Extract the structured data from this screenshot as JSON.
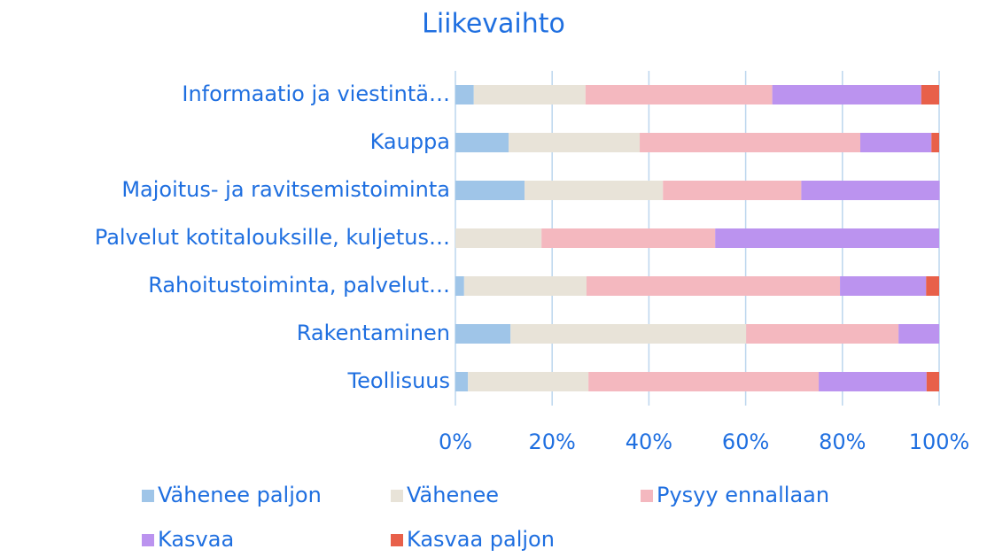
{
  "chart_data": {
    "type": "stacked_bar_horizontal",
    "title": "Liikevaihto",
    "categories": [
      "Informaatio ja viestintä…",
      "Kauppa",
      "Majoitus- ja ravitsemistoiminta",
      "Palvelut kotitalouksille, kuljetus…",
      "Rahoitustoiminta, palvelut…",
      "Rakentaminen",
      "Teollisuus"
    ],
    "series": [
      {
        "name": "Vähenee paljon",
        "color": "#9fc5e8",
        "values": [
          3.8,
          11.0,
          14.3,
          0,
          1.8,
          11.4,
          2.6
        ]
      },
      {
        "name": "Vähenee",
        "color": "#e8e3d8",
        "values": [
          23.1,
          27.1,
          28.6,
          17.8,
          25.3,
          48.7,
          24.9
        ]
      },
      {
        "name": "Pysyy ennallaan",
        "color": "#f4b8bf",
        "values": [
          38.6,
          45.6,
          28.6,
          35.9,
          52.4,
          31.5,
          47.6
        ]
      },
      {
        "name": "Kasvaa",
        "color": "#bb93ef",
        "values": [
          30.8,
          14.7,
          28.6,
          46.3,
          17.8,
          8.4,
          22.3
        ]
      },
      {
        "name": "Kasvaa paljon",
        "color": "#e8604a",
        "values": [
          3.7,
          1.6,
          0,
          0,
          2.7,
          0,
          2.6
        ]
      }
    ],
    "xlim": [
      0,
      100
    ],
    "xticks": [
      {
        "value": 0,
        "label": "0%"
      },
      {
        "value": 20,
        "label": "20%"
      },
      {
        "value": 40,
        "label": "40%"
      },
      {
        "value": 60,
        "label": "60%"
      },
      {
        "value": 80,
        "label": "80%"
      },
      {
        "value": 100,
        "label": "100%"
      }
    ],
    "grid": true
  }
}
